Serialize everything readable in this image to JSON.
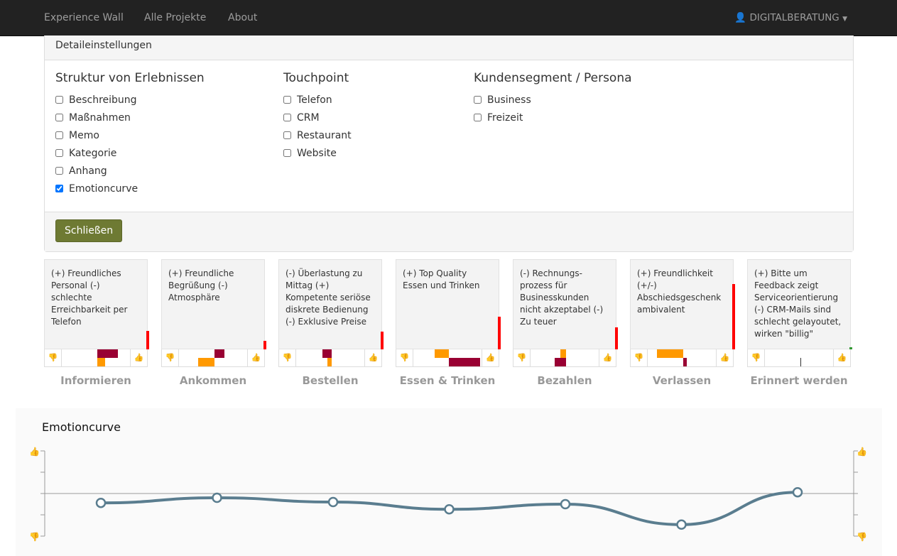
{
  "nav": {
    "links": [
      "Experience Wall",
      "Alle Projekte",
      "About"
    ],
    "user": "DIGITALBERATUNG"
  },
  "panel": {
    "title": "Detaileinstellungen",
    "close_label": "Schließen",
    "columns": [
      {
        "title": "Struktur von Erlebnissen",
        "options": [
          {
            "label": "Beschreibung",
            "checked": false
          },
          {
            "label": "Maßnahmen",
            "checked": false
          },
          {
            "label": "Memo",
            "checked": false
          },
          {
            "label": "Kategorie",
            "checked": false
          },
          {
            "label": "Anhang",
            "checked": false
          },
          {
            "label": "Emotioncurve",
            "checked": true
          }
        ]
      },
      {
        "title": "Touchpoint",
        "options": [
          {
            "label": "Telefon",
            "checked": false
          },
          {
            "label": "CRM",
            "checked": false
          },
          {
            "label": "Restaurant",
            "checked": false
          },
          {
            "label": "Website",
            "checked": false
          }
        ]
      },
      {
        "title": "Kundensegment / Persona",
        "options": [
          {
            "label": "Business",
            "checked": false
          },
          {
            "label": "Freizeit",
            "checked": false
          }
        ]
      }
    ]
  },
  "stages": [
    {
      "label": "Informieren",
      "text": "(+) Freundliches Personal (-) schlechte Erreichbarkeit per Telefon",
      "rating": 0.28,
      "rating_color": "#ff0000",
      "bars": [
        {
          "value": 0.38,
          "color": "#990033"
        },
        {
          "value": 0.14,
          "color": "#ff9900"
        }
      ]
    },
    {
      "label": "Ankommen",
      "text": "(+) Freundliche Begrüßung (-) Atmosphäre",
      "rating": 0.13,
      "rating_color": "#ff0000",
      "bars": [
        {
          "value": 0.18,
          "color": "#990033"
        },
        {
          "value": -0.31,
          "color": "#ff9900"
        }
      ]
    },
    {
      "label": "Bestellen",
      "text": "(-) Überlastung zu Mittag (+) Kompetente seriöse diskrete Bedienung (-) Exklusive Preise",
      "rating": 0.27,
      "rating_color": "#ff0000",
      "bars": [
        {
          "value": -0.18,
          "color": "#990033"
        },
        {
          "value": -0.08,
          "color": "#ff9900"
        }
      ]
    },
    {
      "label": "Essen & Trinken",
      "text": "(+) Top Quality Essen und Trinken",
      "rating": 0.5,
      "rating_color": "#ff0000",
      "bars": [
        {
          "value": -0.27,
          "color": "#ff9900"
        },
        {
          "value": 0.58,
          "color": "#990033"
        }
      ]
    },
    {
      "label": "Bezahlen",
      "text": "(-) Rechnungs-prozess für Businesskunden nicht akzeptabel (-) Zu teuer",
      "rating": 0.34,
      "rating_color": "#ff0000",
      "bars": [
        {
          "value": -0.11,
          "color": "#ff9900"
        },
        {
          "value": -0.22,
          "color": "#990033"
        }
      ]
    },
    {
      "label": "Verlassen",
      "text": "(+) Freundlichkeit (+/-) Abschiedsgeschenk ambivalent",
      "rating": 1.0,
      "rating_color": "#ff0000",
      "bars": [
        {
          "value": -0.5,
          "color": "#ff9900"
        },
        {
          "value": 0.07,
          "color": "#990033"
        }
      ]
    },
    {
      "label": "Erinnert werden",
      "text": "(+) Bitte um Feedback zeigt Serviceorientierung (-) CRM-Mails sind schlecht gelayoutet, wirken \"billig\"",
      "rating": 0.03,
      "rating_color": "#339933",
      "bars": [
        {
          "value": 0,
          "color": "#333333"
        }
      ]
    }
  ],
  "emotioncurve": {
    "title": "Emotioncurve",
    "ylim": [
      -1,
      1
    ],
    "values": [
      -0.22,
      -0.1,
      -0.2,
      -0.37,
      -0.25,
      -0.73,
      0.03
    ],
    "line_color": "#5a7d8f",
    "icons": {
      "top": "thumbs-up-icon",
      "bottom": "thumbs-down-icon"
    }
  }
}
